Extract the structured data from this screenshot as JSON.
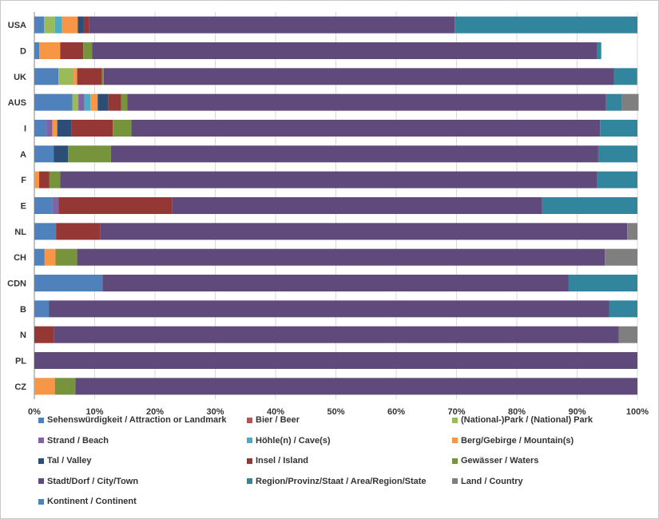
{
  "chart_data": {
    "type": "bar",
    "orientation": "horizontal",
    "stacked": "percent",
    "categories": [
      "USA",
      "D",
      "UK",
      "AUS",
      "I",
      "A",
      "F",
      "E",
      "NL",
      "CH",
      "CDN",
      "B",
      "N",
      "PL",
      "CZ"
    ],
    "xlim": [
      0,
      100
    ],
    "x_ticks": [
      "0%",
      "10%",
      "20%",
      "30%",
      "40%",
      "50%",
      "60%",
      "70%",
      "80%",
      "90%",
      "100%"
    ],
    "grid": true,
    "legend_position": "bottom",
    "series": [
      {
        "name": "Sehenswürdigkeit / Attraction or Landmark",
        "color": "#4f81bd",
        "values": [
          1.6,
          0.8,
          4.0,
          6.3,
          2.0,
          3.2,
          0,
          3.0,
          3.6,
          1.7,
          11.3,
          2.4,
          0,
          0,
          0
        ]
      },
      {
        "name": "Bier / Beer",
        "color": "#c0504d",
        "values": [
          0,
          0,
          0,
          0,
          0,
          0,
          0,
          0,
          0,
          0,
          0,
          0,
          0,
          0,
          0
        ]
      },
      {
        "name": "(National-)Park / (National) Park",
        "color": "#9bbb59",
        "values": [
          1.8,
          0,
          2.5,
          1.0,
          0,
          0,
          0,
          0,
          0,
          0,
          0,
          0,
          0,
          0,
          0
        ]
      },
      {
        "name": "Strand / Beach",
        "color": "#8064a2",
        "values": [
          0,
          0,
          0,
          1.0,
          1.0,
          0,
          0,
          1.0,
          0,
          0,
          0,
          0,
          0,
          0,
          0
        ]
      },
      {
        "name": "Höhle(n) / Cave(s)",
        "color": "#4bacc6",
        "values": [
          1.2,
          0,
          0,
          1.0,
          0,
          0,
          0,
          0,
          0,
          0,
          0,
          0,
          0,
          0,
          0
        ]
      },
      {
        "name": "Berg/Gebirge / Mountain(s)",
        "color": "#f79646",
        "values": [
          2.6,
          3.5,
          0.6,
          1.2,
          0.8,
          0,
          0.8,
          0,
          0,
          1.8,
          0,
          0,
          0,
          0,
          3.4
        ]
      },
      {
        "name": "Tal / Valley",
        "color": "#2c4d75",
        "values": [
          1.0,
          0,
          0,
          1.7,
          2.4,
          2.4,
          0,
          0,
          0,
          0,
          0,
          0,
          0,
          0,
          0
        ]
      },
      {
        "name": "Insel / Island",
        "color": "#953735",
        "values": [
          0.9,
          3.8,
          4.1,
          2.2,
          6.8,
          0,
          1.7,
          18.8,
          7.3,
          0,
          0,
          0,
          3.2,
          0,
          0
        ]
      },
      {
        "name": "Gewässer / Waters",
        "color": "#77933c",
        "values": [
          0,
          1.5,
          0.3,
          1.0,
          3.1,
          7.1,
          1.8,
          0,
          0,
          3.6,
          0,
          0,
          0,
          0,
          3.4
        ]
      },
      {
        "name": "Stadt/Dorf /  City/Town",
        "color": "#604a7b",
        "values": [
          60.6,
          83.7,
          84.6,
          79.4,
          77.7,
          80.8,
          89.0,
          61.4,
          87.4,
          87.5,
          77.3,
          92.9,
          93.7,
          100,
          93.2
        ]
      },
      {
        "name": "Region/Provinz/Staat /  Area/Region/State",
        "color": "#31859c",
        "values": [
          30.3,
          0.7,
          3.8,
          2.6,
          6.2,
          6.5,
          6.7,
          15.8,
          0,
          0,
          11.4,
          4.7,
          0,
          0,
          0
        ]
      },
      {
        "name": "Land / Country",
        "color": "#7f7f7f",
        "values": [
          0,
          0,
          0.1,
          2.8,
          0,
          0,
          0,
          0,
          1.7,
          5.4,
          0,
          0,
          3.1,
          0,
          0
        ]
      },
      {
        "name": "Kontinent / Continent",
        "color": "#4f81bd",
        "values": [
          0,
          0,
          0,
          0,
          0,
          0,
          0,
          0,
          0,
          0,
          0,
          0,
          0,
          0,
          0
        ]
      }
    ]
  }
}
